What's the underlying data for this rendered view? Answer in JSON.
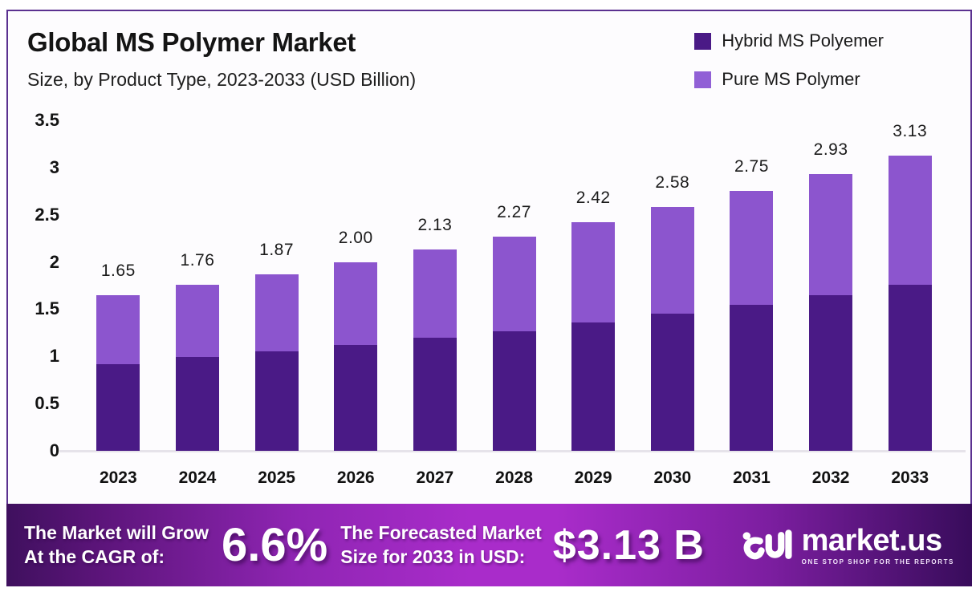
{
  "header": {
    "title": "Global MS Polymer Market",
    "subtitle": "Size, by Product Type, 2023-2033 (USD Billion)"
  },
  "legend": [
    {
      "label": "Hybrid MS Polyemer",
      "color": "#4A1A86"
    },
    {
      "label": "Pure MS Polymer",
      "color": "#9160D6"
    }
  ],
  "chart_data": {
    "type": "bar",
    "stacked": true,
    "title": "Global MS Polymer Market Size, by Product Type, 2023-2033 (USD Billion)",
    "categories": [
      "2023",
      "2024",
      "2025",
      "2026",
      "2027",
      "2028",
      "2029",
      "2030",
      "2031",
      "2032",
      "2033"
    ],
    "series": [
      {
        "name": "Hybrid MS Polyemer",
        "color": "#4A1A86",
        "values": [
          0.92,
          0.99,
          1.05,
          1.12,
          1.2,
          1.27,
          1.36,
          1.45,
          1.55,
          1.65,
          1.76
        ]
      },
      {
        "name": "Pure MS Polymer",
        "color": "#8C55CE",
        "values": [
          0.73,
          0.77,
          0.82,
          0.88,
          0.93,
          1.0,
          1.06,
          1.13,
          1.2,
          1.28,
          1.37
        ]
      }
    ],
    "totals": [
      1.65,
      1.76,
      1.87,
      2.0,
      2.13,
      2.27,
      2.42,
      2.58,
      2.75,
      2.93,
      3.13
    ],
    "total_labels": [
      "1.65",
      "1.76",
      "1.87",
      "2.00",
      "2.13",
      "2.27",
      "2.42",
      "2.58",
      "2.75",
      "2.93",
      "3.13"
    ],
    "xlabel": "",
    "ylabel": "",
    "ylim": [
      0,
      3.5
    ],
    "yticks": [
      3.5,
      3,
      2.5,
      2,
      1.5,
      1,
      0.5,
      0
    ],
    "ytick_labels": [
      "3.5",
      "3",
      "2.5",
      "2",
      "1.5",
      "1",
      "0.5",
      "0"
    ],
    "grid": false,
    "legend_position": "top-right"
  },
  "banner": {
    "grow_line1": "The Market will Grow",
    "grow_line2": "At the CAGR of:",
    "cagr_value": "6.6%",
    "forecast_line1": "The Forecasted Market",
    "forecast_line2": "Size for 2033 in USD:",
    "forecast_value": "$3.13 B",
    "logo": {
      "name": "market.us",
      "tagline": "ONE STOP SHOP FOR THE REPORTS"
    }
  },
  "colors": {
    "frame_border": "#5B3190",
    "hybrid_bar": "#4A1A86",
    "pure_bar": "#8C55CE",
    "banner_mid": "#A92CCA",
    "banner_edge": "#3F105E",
    "baseline": "#E6E3EA"
  }
}
